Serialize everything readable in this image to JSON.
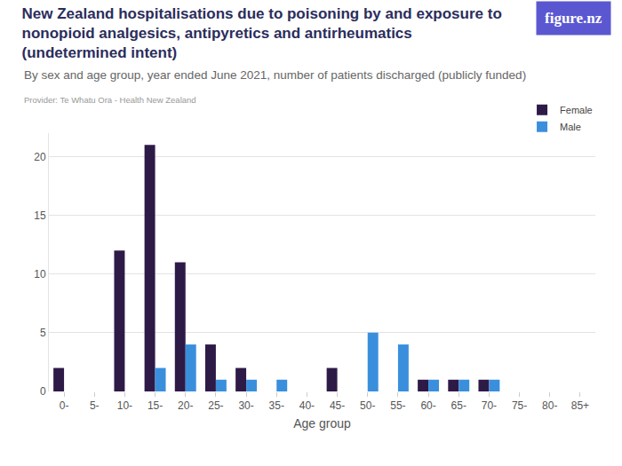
{
  "chart_data": {
    "type": "bar",
    "title": "New Zealand hospitalisations due to poisoning by and exposure to nonopioid analgesics, antipyretics and antirheumatics (undetermined intent)",
    "subtitle": "By sex and age group, year ended June 2021, number of patients discharged (publicly funded)",
    "source": "Provider: Te Whatu Ora - Health New Zealand",
    "logo": "figure.nz",
    "x_label": "Age group",
    "categories": [
      "0-",
      "5-",
      "10-",
      "15-",
      "20-",
      "25-",
      "30-",
      "35-",
      "40-",
      "45-",
      "50-",
      "55-",
      "60-",
      "65-",
      "70-",
      "75-",
      "80-",
      "85+"
    ],
    "series": [
      {
        "name": "Female",
        "color": "#2e1a47",
        "values": [
          2,
          0,
          12,
          21,
          11,
          4,
          2,
          0,
          0,
          2,
          0,
          0,
          1,
          1,
          1,
          0,
          0,
          0
        ]
      },
      {
        "name": "Male",
        "color": "#3a8fdd",
        "values": [
          0,
          0,
          0,
          2,
          4,
          1,
          1,
          1,
          0,
          0,
          5,
          4,
          1,
          1,
          1,
          0,
          0,
          0
        ]
      }
    ],
    "ylim": [
      0,
      22
    ],
    "yticks": [
      0,
      5,
      10,
      15,
      20
    ],
    "grid": true,
    "legend": "upper right"
  }
}
